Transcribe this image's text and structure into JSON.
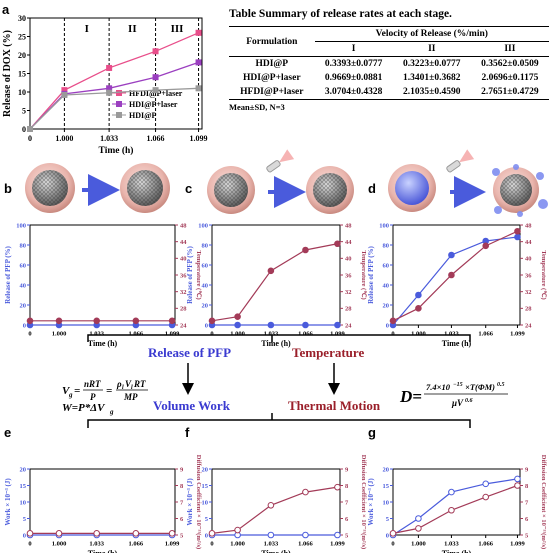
{
  "colors": {
    "pink": "#e84e8a",
    "purple": "#9b3fc0",
    "gray": "#9a9a9a",
    "blue": "#4a5bdc",
    "maroon": "#a33b58",
    "blueText": "#3a3ad0",
    "redText": "#9a1f2a"
  },
  "labels": {
    "panel_b": "b",
    "panel_c": "c",
    "panel_d": "d",
    "panel_e": "e",
    "panel_f": "f",
    "panel_g": "g",
    "release_of_pfp": "Release of PFP",
    "temperature": "Temperature",
    "volume_work": "Volume Work",
    "thermal_motion": "Thermal Motion",
    "eq_vg": "Vg= nRT/P = ρlVlRT/MP",
    "eq_w": "W=P*ΔVg",
    "eq_d": "D= 7.4×10^-15×T(ΦM)^0.5 / μV^0.6"
  },
  "table": {
    "title": "Table   Summary of release rates at each stage.",
    "col_header": "Formulation",
    "group_header": "Velocity of Release (%/min)",
    "stages": [
      "I",
      "II",
      "III"
    ],
    "rows": [
      {
        "name": "HDI@P",
        "vals": [
          "0.3393±0.0777",
          "0.3223±0.0777",
          "0.3562±0.0509"
        ]
      },
      {
        "name": "HDI@P+laser",
        "vals": [
          "0.9669±0.0881",
          "1.3401±0.3682",
          "2.0696±0.1175"
        ]
      },
      {
        "name": "HFDI@P+laser",
        "vals": [
          "3.0704±0.4328",
          "2.1035±0.4590",
          "2.7651±0.4729"
        ]
      }
    ],
    "note": "Mean±SD, N=3"
  },
  "chart_data": [
    {
      "id": "a",
      "type": "line",
      "xlabel": "Time (h)",
      "ylabel": "Release of DOX (%)",
      "categories": [
        "0",
        "1.000",
        "1.033",
        "1.066",
        "1.099"
      ],
      "ylim": [
        0,
        30
      ],
      "yticks": [
        0,
        5,
        10,
        15,
        20,
        25,
        30
      ],
      "stage_labels": [
        "I",
        "II",
        "III"
      ],
      "series": [
        {
          "name": "HFDI@P+laser",
          "values": [
            0,
            10.5,
            16.5,
            21,
            26
          ]
        },
        {
          "name": "HDI@P+laser",
          "values": [
            0,
            9.5,
            11,
            14,
            18
          ]
        },
        {
          "name": "HDI@P",
          "values": [
            0,
            9.2,
            9.8,
            10.5,
            11
          ]
        }
      ]
    },
    {
      "id": "b",
      "type": "line",
      "xlabel": "Time (h)",
      "ylabel": "Release of PFP (%)",
      "y2label": "Temperature (℃)",
      "categories": [
        "0",
        "1.000",
        "1.033",
        "1.066",
        "1.099"
      ],
      "ylim": [
        0,
        100
      ],
      "yticks": [
        0,
        20,
        40,
        60,
        80,
        100
      ],
      "y2lim": [
        24,
        48
      ],
      "y2ticks": [
        24,
        28,
        32,
        36,
        40,
        44,
        48
      ],
      "series": [
        {
          "name": "Release of PFP",
          "values": [
            0,
            0,
            0,
            0,
            0
          ]
        },
        {
          "name": "Temperature",
          "values": [
            25,
            25,
            25,
            25,
            25
          ]
        }
      ]
    },
    {
      "id": "c",
      "type": "line",
      "xlabel": "Time (h)",
      "ylabel": "Release of PFP (%)",
      "y2label": "Temperature (℃)",
      "categories": [
        "0",
        "1.000",
        "1.033",
        "1.066",
        "1.099"
      ],
      "ylim": [
        0,
        100
      ],
      "yticks": [
        0,
        20,
        40,
        60,
        80,
        100
      ],
      "y2lim": [
        24,
        48
      ],
      "y2ticks": [
        24,
        28,
        32,
        36,
        40,
        44,
        48
      ],
      "series": [
        {
          "name": "Release of PFP",
          "values": [
            0,
            0,
            0,
            0,
            0
          ]
        },
        {
          "name": "Temperature",
          "values": [
            25,
            26,
            37,
            42,
            43.5
          ]
        }
      ]
    },
    {
      "id": "d",
      "type": "line",
      "xlabel": "Time (h)",
      "ylabel": "Release of PFP (%)",
      "y2label": "Temperature (℃)",
      "categories": [
        "0",
        "1.000",
        "1.033",
        "1.066",
        "1.099"
      ],
      "ylim": [
        0,
        100
      ],
      "yticks": [
        0,
        20,
        40,
        60,
        80,
        100
      ],
      "y2lim": [
        24,
        48
      ],
      "y2ticks": [
        24,
        28,
        32,
        36,
        40,
        44,
        48
      ],
      "series": [
        {
          "name": "Release of PFP",
          "values": [
            0,
            30,
            70,
            84,
            88
          ]
        },
        {
          "name": "Temperature",
          "values": [
            25,
            28,
            36,
            43,
            46.5
          ]
        }
      ]
    },
    {
      "id": "e",
      "type": "line",
      "xlabel": "Time (h)",
      "ylabel": "Work × 10⁻³ (J)",
      "y2label": "Diffusion Coefficient × 10⁻¹¹(m²/s)",
      "categories": [
        "0",
        "1.000",
        "1.033",
        "1.066",
        "1.099"
      ],
      "ylim": [
        0,
        20
      ],
      "yticks": [
        0,
        5,
        10,
        15,
        20
      ],
      "y2lim": [
        5,
        9
      ],
      "y2ticks": [
        5,
        6,
        7,
        8,
        9
      ],
      "series": [
        {
          "name": "Work",
          "values": [
            0,
            0,
            0,
            0,
            0
          ]
        },
        {
          "name": "Diffusion Coefficient",
          "values": [
            5.1,
            5.1,
            5.1,
            5.1,
            5.1
          ]
        }
      ]
    },
    {
      "id": "f",
      "type": "line",
      "xlabel": "Time (h)",
      "ylabel": "Work × 10⁻³ (J)",
      "y2label": "Diffusion Coefficient × 10⁻¹¹(m²/s)",
      "categories": [
        "0",
        "1.000",
        "1.033",
        "1.066",
        "1.099"
      ],
      "ylim": [
        0,
        20
      ],
      "yticks": [
        0,
        5,
        10,
        15,
        20
      ],
      "y2lim": [
        5,
        9
      ],
      "y2ticks": [
        5,
        6,
        7,
        8,
        9
      ],
      "series": [
        {
          "name": "Work",
          "values": [
            0,
            0,
            0,
            0,
            0
          ]
        },
        {
          "name": "Diffusion Coefficient",
          "values": [
            5.1,
            5.3,
            6.8,
            7.6,
            7.9
          ]
        }
      ]
    },
    {
      "id": "g",
      "type": "line",
      "xlabel": "Time (h)",
      "ylabel": "Work × 10⁻³ (J)",
      "y2label": "Diffusion Coefficient × 10⁻¹¹(m²/s)",
      "categories": [
        "0",
        "1.000",
        "1.033",
        "1.066",
        "1.099"
      ],
      "ylim": [
        0,
        20
      ],
      "yticks": [
        0,
        5,
        10,
        15,
        20
      ],
      "y2lim": [
        5,
        9
      ],
      "y2ticks": [
        5,
        6,
        7,
        8,
        9
      ],
      "series": [
        {
          "name": "Work",
          "values": [
            0,
            5,
            13,
            15.5,
            17
          ]
        },
        {
          "name": "Diffusion Coefficient",
          "values": [
            5.1,
            5.4,
            6.5,
            7.3,
            8
          ]
        }
      ]
    }
  ]
}
